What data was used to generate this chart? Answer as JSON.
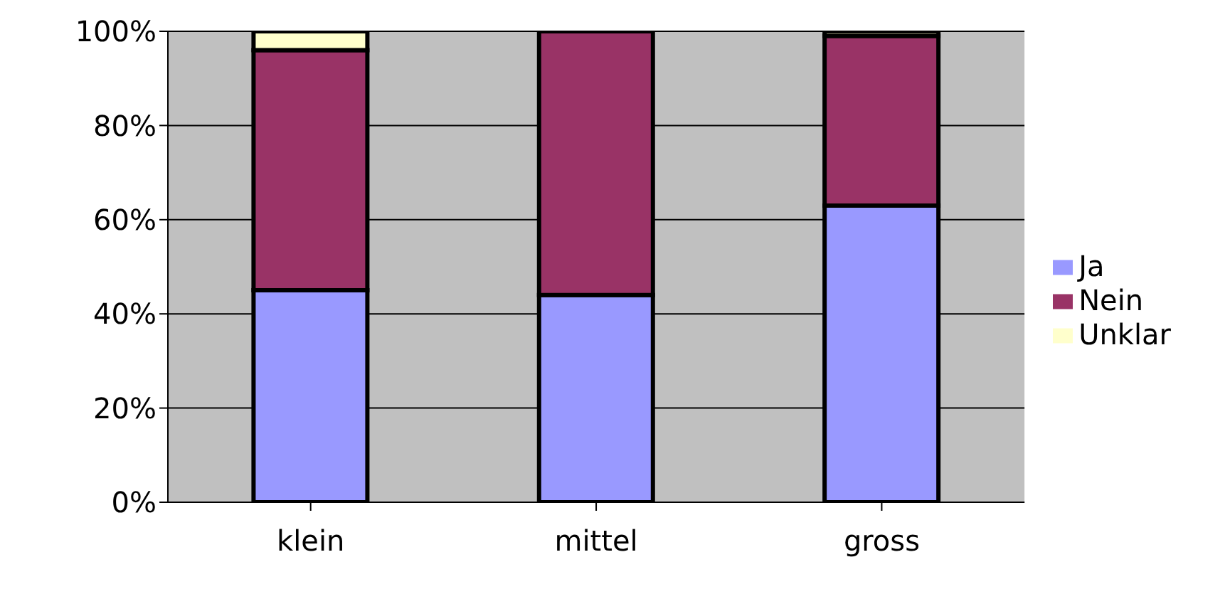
{
  "chart_data": {
    "type": "bar",
    "stacked": true,
    "categories": [
      "klein",
      "mittel",
      "gross"
    ],
    "series": [
      {
        "name": "Ja",
        "color": "#9999ff",
        "values": [
          45,
          44,
          63
        ]
      },
      {
        "name": "Nein",
        "color": "#993366",
        "values": [
          51,
          56,
          36
        ]
      },
      {
        "name": "Unklar",
        "color": "#ffffcc",
        "values": [
          4,
          0,
          1
        ]
      }
    ],
    "ylim": [
      0,
      100
    ],
    "yticks": [
      {
        "value": 0,
        "label": "0%"
      },
      {
        "value": 20,
        "label": "20%"
      },
      {
        "value": 40,
        "label": "40%"
      },
      {
        "value": 60,
        "label": "60%"
      },
      {
        "value": 80,
        "label": "80%"
      },
      {
        "value": 100,
        "label": "100%"
      }
    ],
    "grid": "y",
    "legend": "right"
  }
}
